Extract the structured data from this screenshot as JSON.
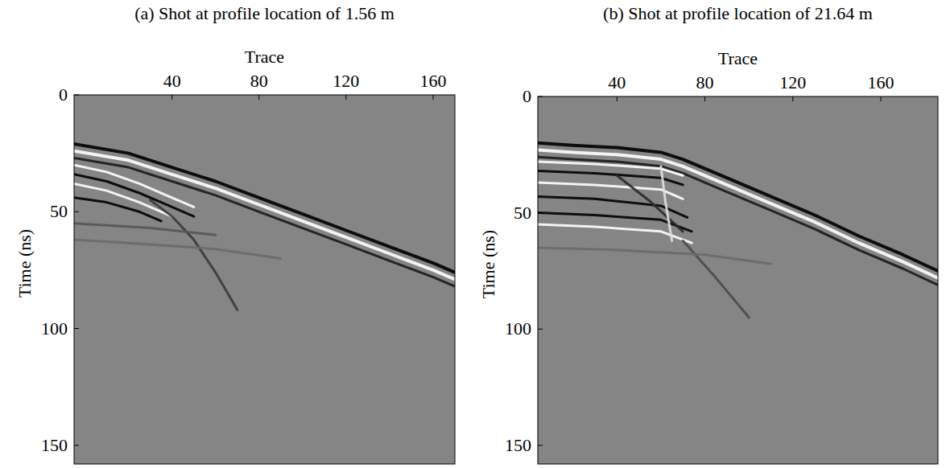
{
  "chart_data": [
    {
      "type": "line",
      "title": "(a) Shot at profile location of 1.56 m",
      "x_label": "Trace",
      "y_label": "Time (ns)",
      "xlim": [
        -5,
        170
      ],
      "ylim": [
        158,
        0
      ],
      "xticks": [
        40,
        80,
        120,
        160
      ],
      "yticks": [
        0,
        50,
        100,
        150
      ],
      "series": [
        {
          "color": "#000000",
          "x": [
            -5,
            20,
            40,
            60,
            80,
            100,
            120,
            140,
            160,
            170
          ],
          "values": [
            21,
            25,
            31,
            37,
            44,
            51,
            58,
            65,
            72,
            76
          ]
        },
        {
          "color": "#ffffff",
          "x": [
            -5,
            20,
            40,
            60,
            80,
            100,
            120,
            140,
            160,
            170
          ],
          "values": [
            24,
            28,
            34,
            40,
            47,
            54,
            61,
            68,
            75,
            79
          ]
        },
        {
          "color": "#1a1a1a",
          "x": [
            -5,
            20,
            40,
            60,
            80,
            100,
            120,
            140,
            160,
            170
          ],
          "values": [
            27,
            31,
            37,
            43,
            50,
            57,
            64,
            71,
            78,
            82
          ]
        },
        {
          "color": "#ffffff",
          "x": [
            -5,
            10,
            25,
            40,
            50
          ],
          "values": [
            30,
            33,
            38,
            44,
            48
          ]
        },
        {
          "color": "#000000",
          "x": [
            -5,
            10,
            25,
            40,
            50
          ],
          "values": [
            34,
            37,
            42,
            48,
            52
          ]
        },
        {
          "color": "#ffffff",
          "x": [
            -5,
            10,
            25,
            40
          ],
          "values": [
            38,
            41,
            46,
            52
          ]
        },
        {
          "color": "#000000",
          "x": [
            -5,
            10,
            25,
            35
          ],
          "values": [
            44,
            46,
            50,
            54
          ]
        },
        {
          "color": "#3a3a3a",
          "x": [
            30,
            40,
            50,
            60,
            70
          ],
          "values": [
            45,
            52,
            62,
            76,
            92
          ]
        },
        {
          "color": "#555555",
          "x": [
            -5,
            30,
            60
          ],
          "values": [
            55,
            57,
            60
          ]
        },
        {
          "color": "#6a6a6a",
          "x": [
            -5,
            30,
            60,
            90
          ],
          "values": [
            62,
            64,
            66,
            70
          ]
        }
      ]
    },
    {
      "type": "line",
      "title": "(b) Shot at profile location of 21.64 m",
      "x_label": "Trace",
      "y_label": "Time (ns)",
      "xlim": [
        4,
        186
      ],
      "ylim": [
        158,
        0
      ],
      "xticks": [
        40,
        80,
        120,
        160
      ],
      "yticks": [
        0,
        50,
        100,
        150
      ],
      "series": [
        {
          "color": "#000000",
          "x": [
            4,
            20,
            40,
            60,
            70,
            90,
            110,
            130,
            150,
            170,
            186
          ],
          "values": [
            20,
            21,
            22,
            24,
            27,
            35,
            43,
            51,
            60,
            68,
            75
          ]
        },
        {
          "color": "#ffffff",
          "x": [
            4,
            20,
            40,
            60,
            70,
            90,
            110,
            130,
            150,
            170,
            186
          ],
          "values": [
            23,
            24,
            25,
            27,
            30,
            38,
            46,
            54,
            63,
            71,
            78
          ]
        },
        {
          "color": "#1a1a1a",
          "x": [
            4,
            20,
            40,
            60,
            70,
            90,
            110,
            130,
            150,
            170,
            186
          ],
          "values": [
            26,
            27,
            28,
            30,
            33,
            41,
            49,
            57,
            66,
            74,
            81
          ]
        },
        {
          "color": "#ffffff",
          "x": [
            4,
            30,
            60,
            70
          ],
          "values": [
            28,
            29,
            31,
            34
          ]
        },
        {
          "color": "#000000",
          "x": [
            4,
            30,
            60,
            70
          ],
          "values": [
            32,
            33,
            35,
            38
          ]
        },
        {
          "color": "#ffffff",
          "x": [
            4,
            30,
            60,
            70
          ],
          "values": [
            37,
            38,
            40,
            44
          ]
        },
        {
          "color": "#000000",
          "x": [
            4,
            30,
            60,
            72
          ],
          "values": [
            43,
            44,
            47,
            52
          ]
        },
        {
          "color": "#000000",
          "x": [
            4,
            30,
            60,
            74
          ],
          "values": [
            50,
            51,
            53,
            58
          ]
        },
        {
          "color": "#ffffff",
          "x": [
            4,
            30,
            60,
            74
          ],
          "values": [
            55,
            56,
            58,
            63
          ]
        },
        {
          "color": "#2a2a2a",
          "x": [
            40,
            55,
            70
          ],
          "values": [
            34,
            45,
            58
          ]
        },
        {
          "color": "#e0e0e0",
          "x": [
            60,
            62,
            65
          ],
          "values": [
            30,
            45,
            62
          ]
        },
        {
          "color": "#4a4a4a",
          "x": [
            70,
            85,
            100
          ],
          "values": [
            62,
            78,
            95
          ]
        },
        {
          "color": "#6a6a6a",
          "x": [
            4,
            40,
            80,
            110
          ],
          "values": [
            65,
            66,
            68,
            72
          ]
        }
      ]
    }
  ]
}
